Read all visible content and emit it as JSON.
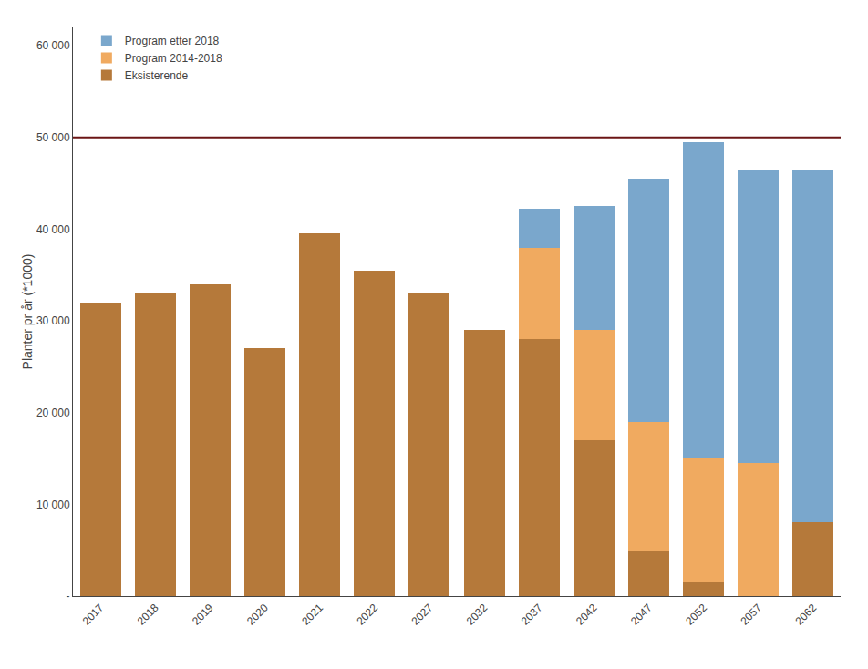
{
  "chart_data": {
    "type": "bar",
    "stacked": true,
    "categories": [
      "2017",
      "2018",
      "2019",
      "2020",
      "2021",
      "2022",
      "2027",
      "2032",
      "2037",
      "2042",
      "2047",
      "2052",
      "2057",
      "2062"
    ],
    "series": [
      {
        "name": "Eksisterende",
        "color": "#b5793a",
        "values": [
          32000,
          33000,
          34000,
          27000,
          39500,
          35500,
          33000,
          29000,
          28000,
          17000,
          5000,
          1500,
          0,
          8000
        ]
      },
      {
        "name": "Program 2014-2018",
        "color": "#f0aa60",
        "values": [
          0,
          0,
          0,
          0,
          0,
          0,
          0,
          0,
          10000,
          12000,
          14000,
          13500,
          14500,
          0
        ]
      },
      {
        "name": "Program etter 2018",
        "color": "#7aa7cc",
        "values": [
          0,
          0,
          0,
          0,
          0,
          0,
          0,
          0,
          4200,
          13500,
          26500,
          34500,
          32000,
          38500
        ]
      }
    ],
    "reference_line": {
      "value": 50000,
      "color": "#6b1515"
    },
    "ylabel": "Planter pr år (*1000)",
    "ylim": [
      0,
      62000
    ],
    "yticks": [
      {
        "value": 0,
        "label": "-"
      },
      {
        "value": 10000,
        "label": "10 000"
      },
      {
        "value": 20000,
        "label": "20 000"
      },
      {
        "value": 30000,
        "label": "30 000"
      },
      {
        "value": 40000,
        "label": "40 000"
      },
      {
        "value": 50000,
        "label": "50 000"
      },
      {
        "value": 60000,
        "label": "60 000"
      }
    ],
    "grid": false,
    "legend": "upper left"
  }
}
